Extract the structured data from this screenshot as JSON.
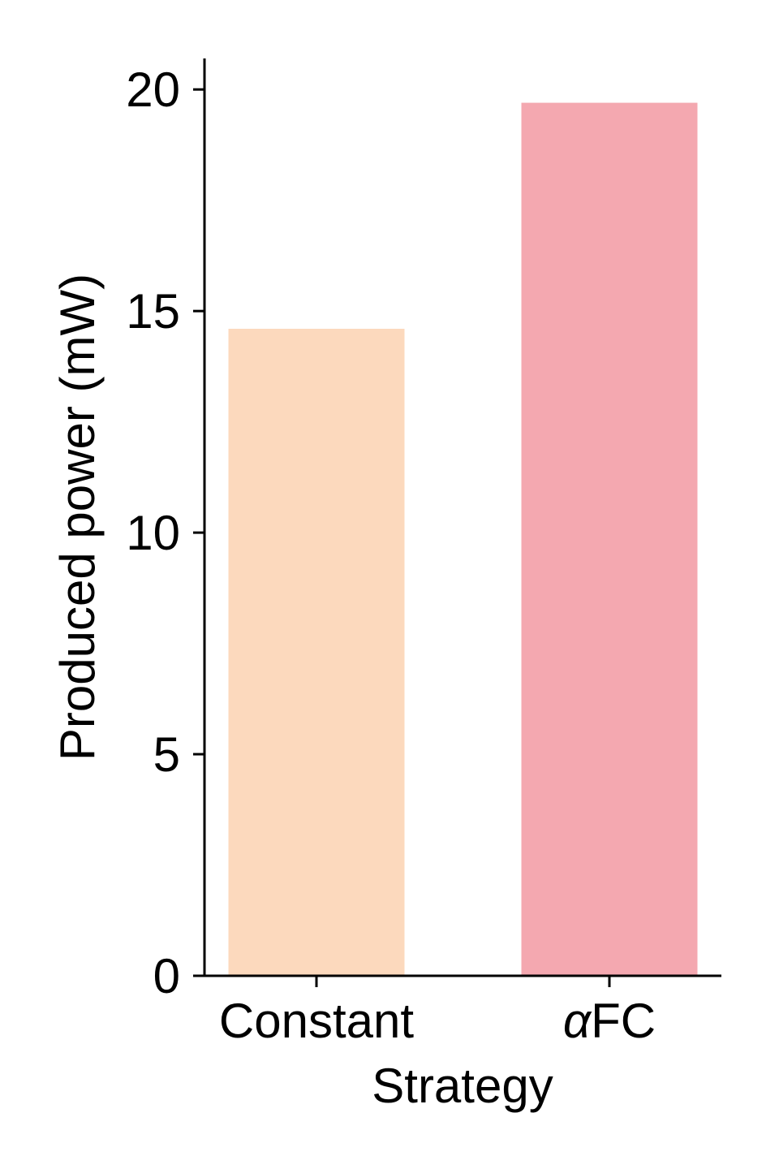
{
  "chart_data": {
    "type": "bar",
    "categories": [
      {
        "prefix": "",
        "text": "Constant"
      },
      {
        "prefix": "α",
        "text": "FC"
      }
    ],
    "values": [
      14.6,
      19.7
    ],
    "colors": [
      "#fcd9bd",
      "#f4a8b0"
    ],
    "title": "",
    "xlabel": "Strategy",
    "ylabel": "Produced power (mW)",
    "ylim": [
      0,
      20.7
    ],
    "yticks": [
      0,
      5,
      10,
      15,
      20
    ],
    "grid": false,
    "legend": false
  }
}
